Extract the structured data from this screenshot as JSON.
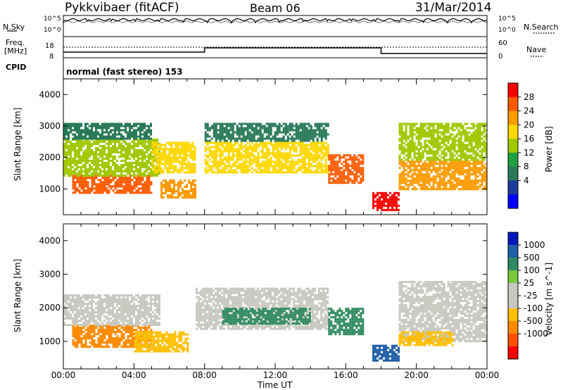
{
  "header": {
    "radar": "Pykkvibaer (fitACF)",
    "beam": "Beam 06",
    "date": "31/Mar/2014"
  },
  "panels": {
    "nsky": {
      "label": "N.Sky",
      "ticks": [
        "10^5",
        "10^0"
      ],
      "right_label": "N.Search",
      "right_ticks": [
        "10^5",
        "10^0"
      ]
    },
    "freq": {
      "label_top": "Freq.",
      "label_bottom": "[MHz]",
      "ticks": [
        "18",
        "8"
      ],
      "right_label": "Nave",
      "right_ticks": [
        "60",
        "0"
      ]
    },
    "cpid": {
      "label": "CPID",
      "mode": "normal (fast stereo) 153"
    }
  },
  "colorbars": {
    "power": {
      "label": "Power [dB]",
      "ticks": [
        "28",
        "24",
        "20",
        "16",
        "12",
        "8",
        "4"
      ],
      "colors": [
        "#ff0000",
        "#ff5a00",
        "#ff9a00",
        "#ffd700",
        "#a0c800",
        "#20a040",
        "#2a7a5a",
        "#1e3c9a",
        "#0000ff"
      ]
    },
    "velocity": {
      "label": "Velocity [m s^-1]",
      "ticks": [
        "1000",
        "500",
        "100",
        "25",
        "-25",
        "-100",
        "-500",
        "-1000"
      ],
      "colors": [
        "#0018c0",
        "#1f5fa8",
        "#2e8a60",
        "#78c83c",
        "#c8c8c0",
        "#c8c8c0",
        "#ffbe00",
        "#ff8a00",
        "#ff5000",
        "#ff0000"
      ]
    }
  },
  "chart_data": [
    {
      "type": "heatmap",
      "title": "",
      "ylabel": "Slant Range [km]",
      "xlabel": "",
      "ylim": [
        180,
        4500
      ],
      "yticks": [
        "4000",
        "3000",
        "2000",
        "1000"
      ],
      "xlim": [
        "00:00",
        "24:00"
      ],
      "quantity": "Power [dB]",
      "bands": [
        {
          "x": [
            0.5,
            5.0
          ],
          "y": [
            850,
            1450
          ],
          "value": 24
        },
        {
          "x": [
            0.0,
            5.5
          ],
          "y": [
            1450,
            2600
          ],
          "value": 12
        },
        {
          "x": [
            0.0,
            5.0
          ],
          "y": [
            2600,
            3100
          ],
          "value": 8
        },
        {
          "x": [
            5.0,
            7.5
          ],
          "y": [
            1500,
            2500
          ],
          "value": 16
        },
        {
          "x": [
            5.5,
            7.5
          ],
          "y": [
            700,
            1300
          ],
          "value": 20
        },
        {
          "x": [
            8.0,
            15.0
          ],
          "y": [
            1500,
            2500
          ],
          "value": 16
        },
        {
          "x": [
            8.0,
            15.0
          ],
          "y": [
            2500,
            3100
          ],
          "value": 8
        },
        {
          "x": [
            15.0,
            17.0
          ],
          "y": [
            1200,
            2100
          ],
          "value": 24
        },
        {
          "x": [
            17.5,
            19.0
          ],
          "y": [
            300,
            900
          ],
          "value": 28
        },
        {
          "x": [
            19.0,
            24.0
          ],
          "y": [
            1000,
            1900
          ],
          "value": 20
        },
        {
          "x": [
            19.0,
            24.0
          ],
          "y": [
            1900,
            3100
          ],
          "value": 12
        }
      ]
    },
    {
      "type": "heatmap",
      "title": "",
      "ylabel": "Slant Range [km]",
      "xlabel": "Time UT",
      "ylim": [
        180,
        4500
      ],
      "yticks": [
        "4000",
        "3000",
        "2000",
        "1000"
      ],
      "xticks": [
        "00:00",
        "04:00",
        "08:00",
        "12:00",
        "16:00",
        "20:00",
        "00:00"
      ],
      "xlim": [
        "00:00",
        "24:00"
      ],
      "quantity": "Velocity [m s^-1]",
      "bands": [
        {
          "x": [
            0.5,
            5.0
          ],
          "y": [
            850,
            1500
          ],
          "value": -500
        },
        {
          "x": [
            0.0,
            5.5
          ],
          "y": [
            1500,
            2400
          ],
          "value": -25
        },
        {
          "x": [
            4.0,
            7.0
          ],
          "y": [
            700,
            1300
          ],
          "value": -100
        },
        {
          "x": [
            7.5,
            15.0
          ],
          "y": [
            1400,
            2600
          ],
          "value": -25
        },
        {
          "x": [
            9.0,
            14.0
          ],
          "y": [
            1500,
            2000
          ],
          "value": 100
        },
        {
          "x": [
            15.0,
            17.0
          ],
          "y": [
            1200,
            2000
          ],
          "value": 100
        },
        {
          "x": [
            17.5,
            19.0
          ],
          "y": [
            400,
            900
          ],
          "value": 500
        },
        {
          "x": [
            19.0,
            24.0
          ],
          "y": [
            1000,
            2800
          ],
          "value": -25
        },
        {
          "x": [
            19.0,
            22.0
          ],
          "y": [
            900,
            1300
          ],
          "value": -100
        }
      ]
    }
  ]
}
